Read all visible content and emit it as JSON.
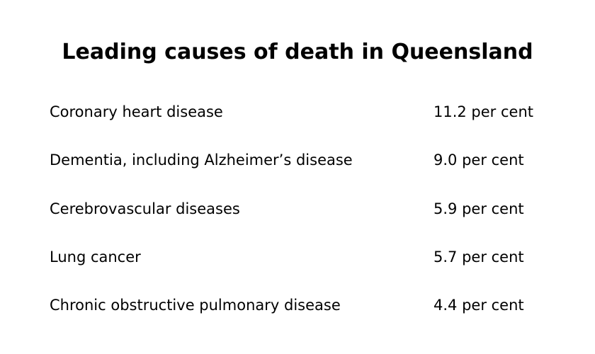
{
  "title": "Leading causes of death in Queensland",
  "rows": [
    {
      "cause": "Coronary heart disease",
      "value": "11.2 per cent"
    },
    {
      "cause": "Dementia, including Alzheimer’s disease",
      "value": "9.0 per cent"
    },
    {
      "cause": "Cerebrovascular diseases",
      "value": "5.9 per cent"
    },
    {
      "cause": "Lung cancer",
      "value": "5.7 per cent"
    },
    {
      "cause": "Chronic obstructive pulmonary disease",
      "value": "4.4 per cent"
    }
  ]
}
